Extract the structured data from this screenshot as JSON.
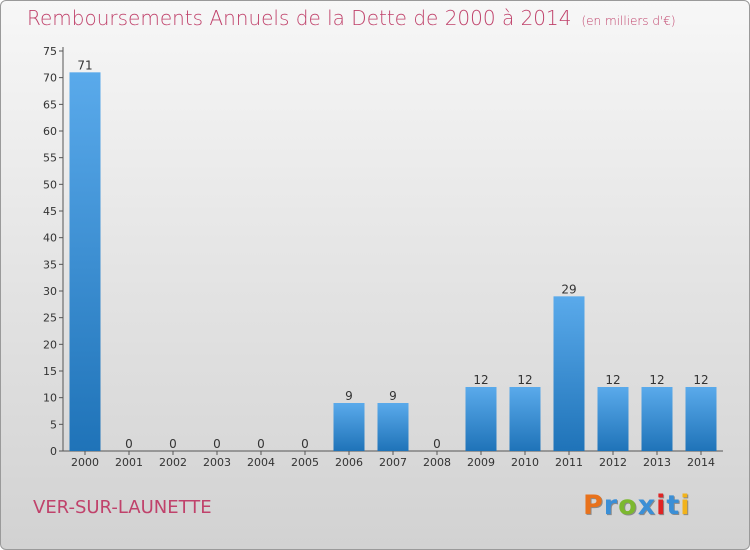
{
  "title": "Remboursements Annuels de la Dette de 2000 à 2014",
  "unit": "(en milliers d'€)",
  "commune": "VER-SUR-LAUNETTE",
  "logo": {
    "text": "Proxiti",
    "colors": [
      "#e8721c",
      "#3b8fd6",
      "#7cb82f",
      "#3b8fd6",
      "#e02424",
      "#3b8fd6",
      "#f2b31b"
    ]
  },
  "colors": {
    "title": "#c0426b",
    "bar_light": "#5aaaeb",
    "bar_dark": "#1f73b8"
  },
  "chart_data": {
    "type": "bar",
    "categories": [
      "2000",
      "2001",
      "2002",
      "2003",
      "2004",
      "2005",
      "2006",
      "2007",
      "2008",
      "2009",
      "2010",
      "2011",
      "2012",
      "2013",
      "2014"
    ],
    "values": [
      71,
      0,
      0,
      0,
      0,
      0,
      9,
      9,
      0,
      12,
      12,
      29,
      12,
      12,
      12
    ],
    "ylim": [
      0,
      75
    ],
    "yticks": [
      0,
      5,
      10,
      15,
      20,
      25,
      30,
      35,
      40,
      45,
      50,
      55,
      60,
      65,
      70,
      75
    ],
    "grid": false,
    "data_labels": true
  }
}
